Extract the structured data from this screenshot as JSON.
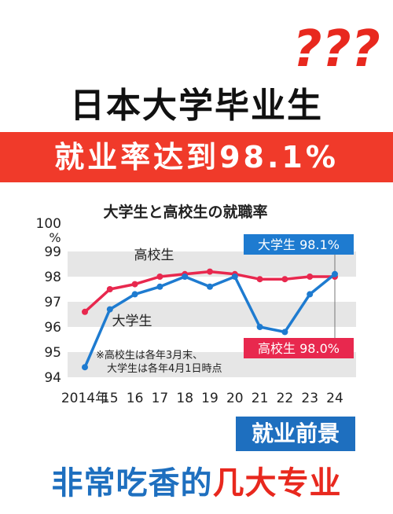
{
  "header": {
    "question_marks": "???",
    "headline": "日本大学毕业生",
    "banner": "就业率达到98.1%"
  },
  "colors": {
    "red": "#f03a2a",
    "blue": "#1e6fbf",
    "band": "#e6e6e6"
  },
  "chart_data": {
    "type": "line",
    "title": "大学生と高校生の就職率",
    "x": [
      "2014年",
      "15",
      "16",
      "17",
      "18",
      "19",
      "20",
      "21",
      "22",
      "23",
      "24"
    ],
    "series": [
      {
        "name": "高校生",
        "color": "#e8284e",
        "values": [
          96.6,
          97.5,
          97.7,
          98.0,
          98.1,
          98.2,
          98.1,
          97.9,
          97.9,
          98.0,
          98.0
        ]
      },
      {
        "name": "大学生",
        "color": "#1e7bd0",
        "values": [
          94.4,
          96.7,
          97.3,
          97.6,
          98.0,
          97.6,
          98.0,
          96.0,
          95.8,
          97.3,
          98.1
        ]
      }
    ],
    "ylim": [
      94,
      100
    ],
    "yticks": [
      "94",
      "95",
      "96",
      "97",
      "98",
      "99",
      "100"
    ],
    "y_unit": "%",
    "callouts": {
      "university": "大学生 98.1%",
      "highschool": "高校生 98.0%"
    },
    "note": [
      "※高校生は各年3月末、",
      "大学生は各年4月1日時点"
    ],
    "grid": "alternating horizontal bands"
  },
  "footer": {
    "tag": "就业前景",
    "line_part1": "非常吃香的",
    "line_part2": "几大专业"
  }
}
